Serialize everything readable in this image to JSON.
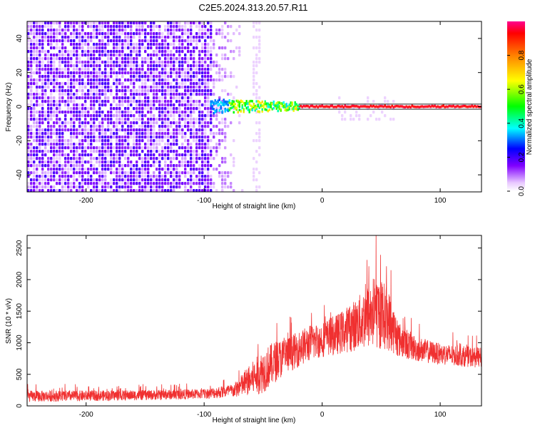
{
  "title": "C2E5.2024.313.20.57.R11",
  "chart_data": [
    {
      "type": "heatmap",
      "xlabel": "Height of straight line (km)",
      "ylabel": "Frequency (Hz)",
      "xlim": [
        -250,
        135
      ],
      "ylim": [
        -50,
        50
      ],
      "xticks": [
        -200,
        -100,
        0,
        100
      ],
      "yticks": [
        -40,
        -20,
        0,
        20,
        40
      ],
      "colorbar": {
        "label": "Normalized spectral amplitude",
        "range": [
          0.0,
          1.0
        ],
        "ticks": [
          0.0,
          0.2,
          0.4,
          0.6,
          0.8
        ]
      },
      "features": {
        "noise_region_x": [
          -250,
          -85
        ],
        "signal_start_x": -95,
        "signal_band_hz": [
          -1.5,
          1.5
        ]
      }
    },
    {
      "type": "line",
      "xlabel": "Height of straight line (km)",
      "ylabel": "SNR (10 * v/v)",
      "xlim": [
        -250,
        135
      ],
      "ylim": [
        0,
        2700
      ],
      "xticks": [
        -200,
        -100,
        0,
        100
      ],
      "yticks": [
        0,
        500,
        1000,
        1500,
        2000,
        2500
      ],
      "color": "#f03030",
      "envelope": [
        {
          "x": -250,
          "base": 150,
          "amp": 90
        },
        {
          "x": -150,
          "base": 170,
          "amp": 80
        },
        {
          "x": -100,
          "base": 190,
          "amp": 80
        },
        {
          "x": -75,
          "base": 240,
          "amp": 110
        },
        {
          "x": -60,
          "base": 420,
          "amp": 260
        },
        {
          "x": -50,
          "base": 550,
          "amp": 350
        },
        {
          "x": -40,
          "base": 700,
          "amp": 330
        },
        {
          "x": -25,
          "base": 850,
          "amp": 280
        },
        {
          "x": -10,
          "base": 1000,
          "amp": 290
        },
        {
          "x": 0,
          "base": 1050,
          "amp": 280
        },
        {
          "x": 15,
          "base": 1150,
          "amp": 330
        },
        {
          "x": 30,
          "base": 1300,
          "amp": 420
        },
        {
          "x": 45,
          "base": 1500,
          "amp": 600
        },
        {
          "x": 55,
          "base": 1400,
          "amp": 520
        },
        {
          "x": 65,
          "base": 1050,
          "amp": 280
        },
        {
          "x": 80,
          "base": 900,
          "amp": 200
        },
        {
          "x": 100,
          "base": 820,
          "amp": 170
        },
        {
          "x": 135,
          "base": 760,
          "amp": 160
        }
      ]
    }
  ]
}
